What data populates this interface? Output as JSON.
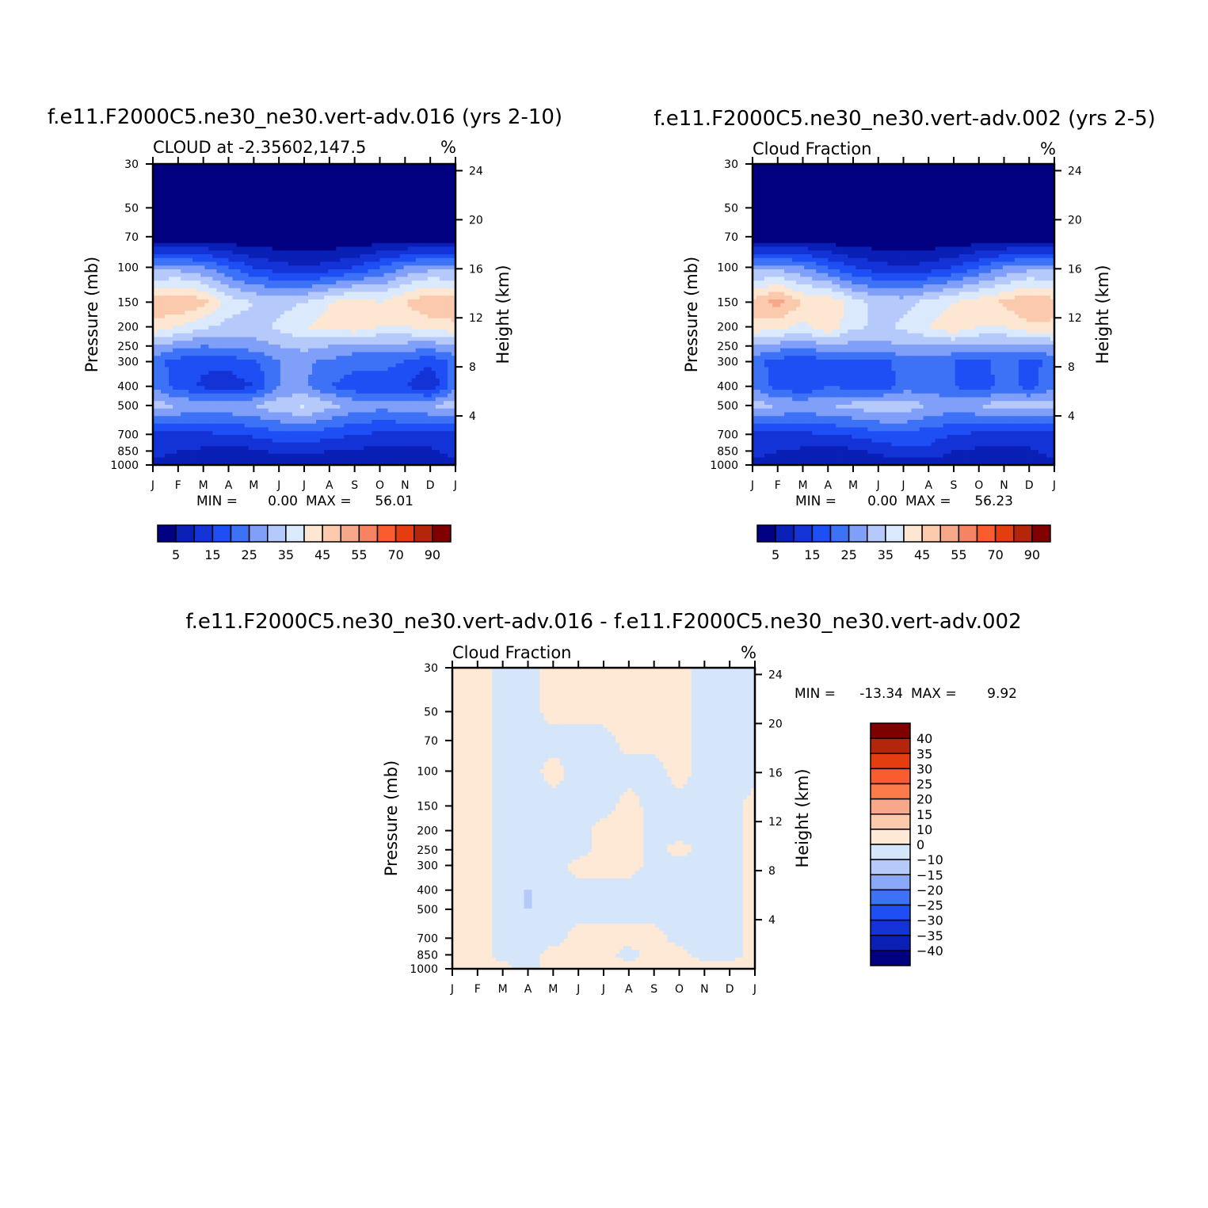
{
  "chart_data": [
    {
      "type": "heatmap",
      "title": "f.e11.F2000C5.ne30_ne30.vert-adv.016 (yrs 2-10)",
      "subtitle_left": "CLOUD at -2.35602,147.5",
      "subtitle_right": "%",
      "ylabel": "Pressure (mb)",
      "ylabel_right": "Height (km)",
      "x_ticks": [
        "J",
        "F",
        "M",
        "A",
        "M",
        "J",
        "J",
        "A",
        "S",
        "O",
        "N",
        "D",
        "J"
      ],
      "y_ticks": [
        30,
        50,
        70,
        100,
        150,
        200,
        250,
        300,
        400,
        500,
        700,
        850,
        1000
      ],
      "y_right_ticks": [
        24,
        20,
        16,
        12,
        8,
        4
      ],
      "stats": {
        "min_label": "MIN =",
        "min": "0.00",
        "max_label": "MAX =",
        "max": "56.01"
      },
      "colorbar_labels": [
        "5",
        "15",
        "25",
        "35",
        "45",
        "55",
        "70",
        "90"
      ],
      "months": 13,
      "levels": [
        30,
        50,
        70,
        100,
        150,
        200,
        250,
        300,
        400,
        500,
        700,
        850,
        1000
      ],
      "values": [
        [
          0,
          0,
          0,
          0,
          0,
          0,
          0,
          0,
          0,
          0,
          0,
          0,
          0
        ],
        [
          0,
          0,
          0,
          0,
          0,
          0,
          0,
          0,
          0,
          0,
          0,
          0,
          0
        ],
        [
          1,
          1,
          1,
          0,
          0,
          0,
          0,
          0,
          0,
          0,
          0,
          1,
          1
        ],
        [
          28,
          28,
          25,
          20,
          15,
          12,
          10,
          12,
          15,
          20,
          25,
          28,
          28
        ],
        [
          48,
          50,
          47,
          38,
          35,
          33,
          35,
          40,
          43,
          40,
          45,
          50,
          48
        ],
        [
          44,
          40,
          36,
          33,
          33,
          36,
          40,
          42,
          44,
          40,
          40,
          42,
          44
        ],
        [
          30,
          27,
          25,
          26,
          28,
          30,
          32,
          30,
          28,
          28,
          28,
          27,
          30
        ],
        [
          22,
          18,
          16,
          17,
          19,
          25,
          26,
          24,
          22,
          22,
          20,
          16,
          22
        ],
        [
          24,
          18,
          14,
          12,
          15,
          25,
          26,
          20,
          17,
          17,
          15,
          10,
          24
        ],
        [
          33,
          30,
          28,
          29,
          30,
          34,
          36,
          32,
          28,
          27,
          28,
          30,
          33
        ],
        [
          14,
          14,
          14,
          15,
          16,
          18,
          19,
          17,
          15,
          14,
          14,
          14,
          14
        ],
        [
          12,
          10,
          9,
          8,
          9,
          11,
          11,
          10,
          9,
          9,
          9,
          9,
          12
        ],
        [
          8,
          7,
          6,
          6,
          6,
          7,
          7,
          7,
          6,
          6,
          6,
          6,
          8
        ]
      ]
    },
    {
      "type": "heatmap",
      "title": "f.e11.F2000C5.ne30_ne30.vert-adv.002 (yrs 2-5)",
      "subtitle_left": "Cloud Fraction",
      "subtitle_right": "%",
      "ylabel": "Pressure (mb)",
      "ylabel_right": "Height (km)",
      "x_ticks": [
        "J",
        "F",
        "M",
        "A",
        "M",
        "J",
        "J",
        "A",
        "S",
        "O",
        "N",
        "D",
        "J"
      ],
      "y_ticks": [
        30,
        50,
        70,
        100,
        150,
        200,
        250,
        300,
        400,
        500,
        700,
        850,
        1000
      ],
      "y_right_ticks": [
        24,
        20,
        16,
        12,
        8,
        4
      ],
      "stats": {
        "min_label": "MIN =",
        "min": "0.00",
        "max_label": "MAX =",
        "max": "56.23"
      },
      "colorbar_labels": [
        "5",
        "15",
        "25",
        "35",
        "45",
        "55",
        "70",
        "90"
      ],
      "months": 13,
      "levels": [
        30,
        50,
        70,
        100,
        150,
        200,
        250,
        300,
        400,
        500,
        700,
        850,
        1000
      ],
      "values": [
        [
          0,
          0,
          0,
          0,
          0,
          0,
          0,
          0,
          0,
          0,
          0,
          0,
          0
        ],
        [
          0,
          0,
          0,
          0,
          0,
          0,
          0,
          0,
          0,
          0,
          0,
          0,
          0
        ],
        [
          1,
          1,
          1,
          0,
          0,
          0,
          0,
          0,
          0,
          0,
          0,
          1,
          1
        ],
        [
          28,
          28,
          25,
          20,
          15,
          12,
          10,
          12,
          15,
          20,
          25,
          28,
          28
        ],
        [
          47,
          52,
          45,
          44,
          38,
          33,
          33,
          37,
          40,
          43,
          46,
          50,
          47
        ],
        [
          44,
          42,
          38,
          44,
          36,
          34,
          36,
          40,
          44,
          40,
          40,
          44,
          44
        ],
        [
          30,
          28,
          26,
          30,
          28,
          28,
          30,
          30,
          30,
          28,
          28,
          28,
          30
        ],
        [
          22,
          18,
          16,
          19,
          18,
          18,
          22,
          22,
          20,
          18,
          22,
          18,
          22
        ],
        [
          24,
          18,
          15,
          20,
          18,
          15,
          22,
          22,
          20,
          17,
          22,
          18,
          24
        ],
        [
          33,
          30,
          29,
          30,
          32,
          34,
          34,
          30,
          28,
          30,
          33,
          32,
          33
        ],
        [
          14,
          14,
          14,
          15,
          16,
          18,
          19,
          17,
          15,
          14,
          14,
          14,
          14
        ],
        [
          12,
          10,
          9,
          8,
          9,
          11,
          14,
          14,
          10,
          9,
          9,
          9,
          12
        ],
        [
          8,
          7,
          6,
          6,
          6,
          7,
          7,
          7,
          6,
          6,
          6,
          6,
          8
        ]
      ]
    },
    {
      "type": "heatmap",
      "title": "f.e11.F2000C5.ne30_ne30.vert-adv.016 - f.e11.F2000C5.ne30_ne30.vert-adv.002",
      "subtitle_left": "Cloud Fraction",
      "subtitle_right": "%",
      "ylabel": "Pressure (mb)",
      "ylabel_right": "Height (km)",
      "x_ticks": [
        "J",
        "F",
        "M",
        "A",
        "M",
        "J",
        "J",
        "A",
        "S",
        "O",
        "N",
        "D",
        "J"
      ],
      "y_ticks": [
        30,
        50,
        70,
        100,
        150,
        200,
        250,
        300,
        400,
        500,
        700,
        850,
        1000
      ],
      "y_right_ticks": [
        24,
        20,
        16,
        12,
        8,
        4
      ],
      "stats": {
        "min_label": "MIN =",
        "min": "-13.34",
        "max_label": "MAX =",
        "max": "9.92"
      },
      "colorbar_labels": [
        "40",
        "35",
        "30",
        "25",
        "20",
        "15",
        "10",
        "0",
        "-10",
        "-15",
        "-20",
        "-25",
        "-30",
        "-35",
        "-40"
      ],
      "months": 13,
      "levels": [
        30,
        50,
        70,
        100,
        150,
        200,
        250,
        300,
        400,
        500,
        700,
        850,
        1000
      ],
      "values": [
        [
          1,
          1,
          -1,
          -1,
          1,
          1,
          1,
          1,
          1,
          1,
          -1,
          -1,
          -1
        ],
        [
          1,
          1,
          -1,
          -1,
          1,
          1,
          1,
          1,
          1,
          1,
          -1,
          -1,
          -1
        ],
        [
          1,
          1,
          -1,
          -1,
          -1,
          -1,
          -1,
          1,
          1,
          1,
          -1,
          -1,
          -1
        ],
        [
          1,
          1,
          -1,
          -1,
          1,
          -1,
          -1,
          -1,
          -1,
          1,
          -1,
          -1,
          -1
        ],
        [
          1,
          1,
          -1,
          -1,
          -1,
          -1,
          -1,
          1,
          -1,
          -1,
          -1,
          -1,
          1
        ],
        [
          1,
          1,
          -1,
          -1,
          -1,
          -1,
          1,
          1,
          -1,
          -1,
          -1,
          -1,
          1
        ],
        [
          1,
          1,
          -1,
          -1,
          -1,
          -1,
          1,
          1,
          -1,
          1,
          -1,
          -1,
          1
        ],
        [
          1,
          1,
          -1,
          -1,
          -1,
          1,
          1,
          1,
          -1,
          -1,
          -1,
          -1,
          1
        ],
        [
          1,
          1,
          -1,
          -11,
          -1,
          -1,
          -1,
          -1,
          -1,
          -1,
          -1,
          -1,
          1
        ],
        [
          1,
          1,
          -1,
          -11,
          -1,
          -1,
          -1,
          -1,
          -1,
          -1,
          -1,
          -1,
          1
        ],
        [
          1,
          1,
          -1,
          -1,
          -1,
          1,
          1,
          1,
          1,
          -1,
          -1,
          -1,
          1
        ],
        [
          1,
          1,
          -1,
          -1,
          1,
          1,
          1,
          -1,
          1,
          1,
          -1,
          -1,
          1
        ],
        [
          1,
          1,
          1,
          -1,
          1,
          1,
          1,
          1,
          1,
          1,
          1,
          1,
          1
        ]
      ]
    }
  ],
  "colors": {
    "abs_palette": [
      "#000080",
      "#0a1fb5",
      "#1433d6",
      "#1e4ff5",
      "#3d72f7",
      "#7f9ff9",
      "#b6c9fb",
      "#dbe9fd",
      "#fde6d2",
      "#fbc9ac",
      "#f8a88a",
      "#f68462",
      "#fa5c30",
      "#e33d10",
      "#b3260b",
      "#800000"
    ],
    "diff_palette": [
      "#800000",
      "#b3260b",
      "#e33d10",
      "#fa5c30",
      "#fb7c4a",
      "#f8a88a",
      "#fbc9ac",
      "#fde9d5",
      "#d5e6fb",
      "#b6c9fb",
      "#8aa8f8",
      "#3d72f7",
      "#1e4ff5",
      "#1433d6",
      "#0a1fb5",
      "#000080"
    ]
  }
}
